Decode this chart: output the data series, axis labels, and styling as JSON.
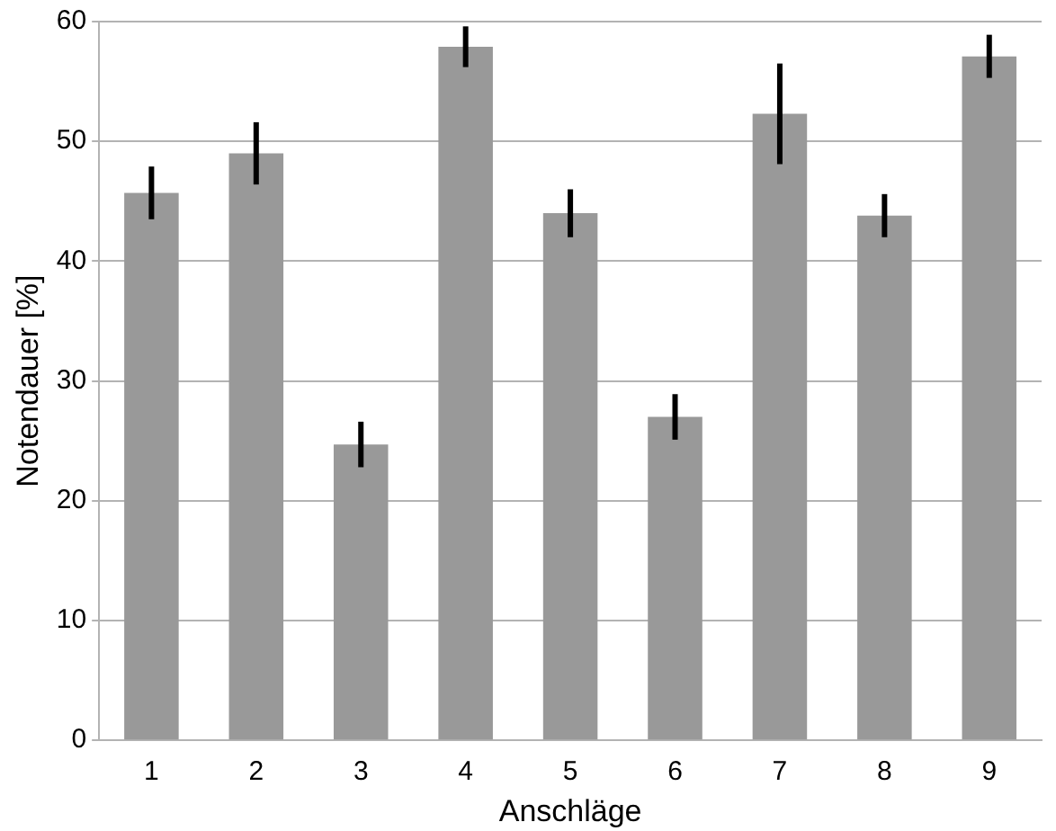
{
  "chart_data": {
    "type": "bar",
    "xlabel": "Anschläge",
    "ylabel": "Notendauer [%]",
    "categories": [
      "1",
      "2",
      "3",
      "4",
      "5",
      "6",
      "7",
      "8",
      "9"
    ],
    "values": [
      45.7,
      49,
      24.7,
      57.9,
      44,
      27,
      52.3,
      43.8,
      57.1
    ],
    "errors": [
      2.2,
      2.6,
      1.9,
      1.7,
      2,
      1.9,
      4.2,
      1.8,
      1.8
    ],
    "color": "#999999",
    "ylim": [
      0,
      60
    ],
    "yticks": [
      0,
      10,
      20,
      30,
      40,
      50,
      60
    ],
    "grid": "y",
    "legend": false
  }
}
